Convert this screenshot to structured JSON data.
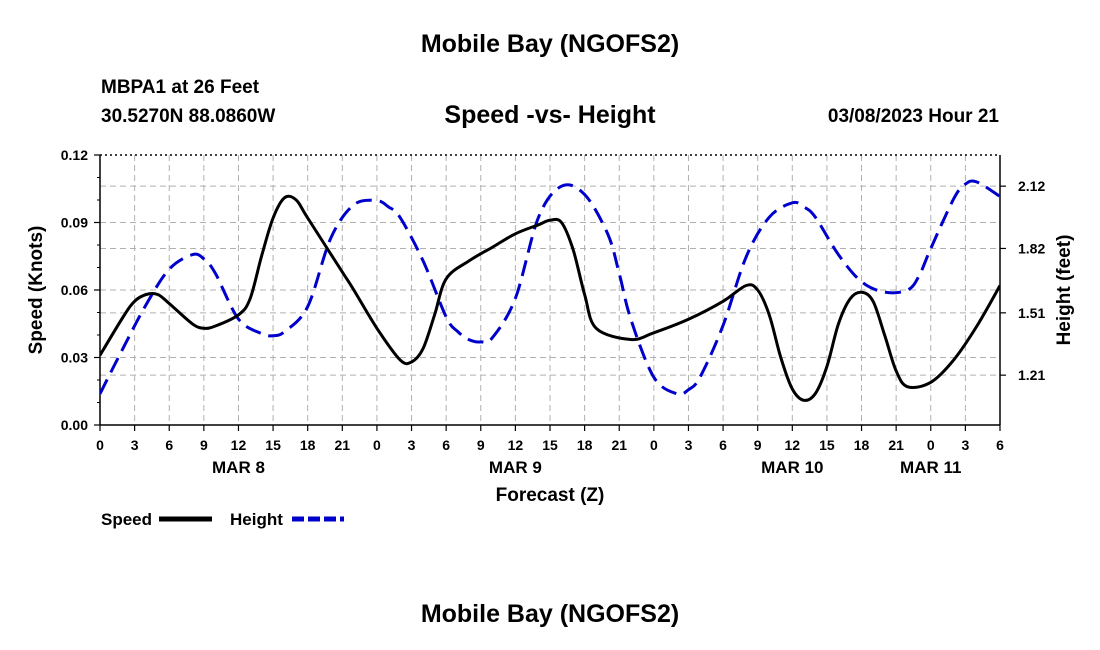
{
  "header": {
    "title": "Mobile Bay (NGOFS2)",
    "station": "MBPA1 at 26 Feet",
    "coordinates": "30.5270N  88.0860W",
    "datetime": "03/08/2023 Hour 21",
    "footer_title": "Mobile Bay (NGOFS2)"
  },
  "colors": {
    "speed": "#000000",
    "height": "#0000cc",
    "grid": "#b0b0b0"
  },
  "chart_data": {
    "type": "line",
    "title": "Speed -vs- Height",
    "xlabel": "Forecast (Z)",
    "ylabel": "Speed (Knots)",
    "y2label": "Height (feet)",
    "xlim": [
      0,
      78
    ],
    "ylim": [
      0,
      0.12
    ],
    "y2lim": [
      0.97,
      2.27
    ],
    "x_tick_labels": [
      "0",
      "3",
      "6",
      "9",
      "12",
      "15",
      "18",
      "21",
      "0",
      "3",
      "6",
      "9",
      "12",
      "15",
      "18",
      "21",
      "0",
      "3",
      "6",
      "9",
      "12",
      "15",
      "18",
      "21",
      "0",
      "3",
      "6"
    ],
    "y_ticks": [
      "0.00",
      "0.03",
      "0.06",
      "0.09",
      "0.12"
    ],
    "y2_ticks": [
      "1.21",
      "1.51",
      "1.82",
      "2.12"
    ],
    "date_labels": [
      {
        "x": 12,
        "label": "MAR 8"
      },
      {
        "x": 36,
        "label": "MAR 9"
      },
      {
        "x": 60,
        "label": "MAR 10"
      },
      {
        "x": 72,
        "label": "MAR 11"
      }
    ],
    "series": [
      {
        "name": "Speed",
        "axis": "left",
        "style": "solid",
        "x": [
          0,
          2,
          3,
          4,
          5,
          6,
          8,
          9,
          10,
          12,
          13,
          14,
          15,
          16,
          17,
          18,
          21,
          22,
          24,
          26,
          27,
          28,
          29,
          30,
          32,
          34,
          36,
          38,
          39,
          40,
          41,
          42,
          43,
          46,
          48,
          51,
          54,
          56,
          57,
          58,
          59,
          60,
          61,
          62,
          63,
          64,
          65,
          66,
          67,
          68,
          69,
          70,
          72,
          74,
          76,
          78
        ],
        "values": [
          0.031,
          0.048,
          0.055,
          0.058,
          0.058,
          0.054,
          0.045,
          0.043,
          0.044,
          0.049,
          0.056,
          0.075,
          0.092,
          0.101,
          0.1,
          0.092,
          0.068,
          0.06,
          0.043,
          0.029,
          0.028,
          0.034,
          0.049,
          0.065,
          0.073,
          0.079,
          0.085,
          0.089,
          0.091,
          0.09,
          0.078,
          0.058,
          0.043,
          0.038,
          0.041,
          0.047,
          0.055,
          0.062,
          0.06,
          0.049,
          0.03,
          0.016,
          0.011,
          0.014,
          0.026,
          0.045,
          0.056,
          0.059,
          0.055,
          0.04,
          0.024,
          0.017,
          0.019,
          0.029,
          0.044,
          0.062
        ]
      },
      {
        "name": "Height",
        "axis": "right",
        "style": "dashed",
        "x": [
          0,
          2,
          4,
          6,
          8,
          9,
          10,
          12,
          14,
          15,
          16,
          18,
          20,
          22,
          24,
          25,
          26,
          28,
          30,
          31,
          32,
          33,
          34,
          36,
          38,
          40,
          42,
          44,
          45,
          46,
          48,
          50,
          51,
          52,
          54,
          56,
          58,
          60,
          61,
          62,
          64,
          66,
          68,
          70,
          71,
          72,
          74,
          75,
          76,
          78
        ],
        "values": [
          1.12,
          1.34,
          1.55,
          1.72,
          1.79,
          1.77,
          1.7,
          1.48,
          1.41,
          1.4,
          1.42,
          1.54,
          1.87,
          2.03,
          2.05,
          2.02,
          1.97,
          1.76,
          1.49,
          1.42,
          1.38,
          1.37,
          1.39,
          1.58,
          1.97,
          2.12,
          2.08,
          1.89,
          1.7,
          1.48,
          1.2,
          1.12,
          1.14,
          1.2,
          1.45,
          1.78,
          1.97,
          2.04,
          2.02,
          1.97,
          1.79,
          1.66,
          1.61,
          1.62,
          1.69,
          1.82,
          2.06,
          2.13,
          2.14,
          2.07
        ]
      }
    ],
    "legend": [
      {
        "label": "Speed",
        "style": "solid"
      },
      {
        "label": "Height",
        "style": "dashed"
      }
    ]
  }
}
